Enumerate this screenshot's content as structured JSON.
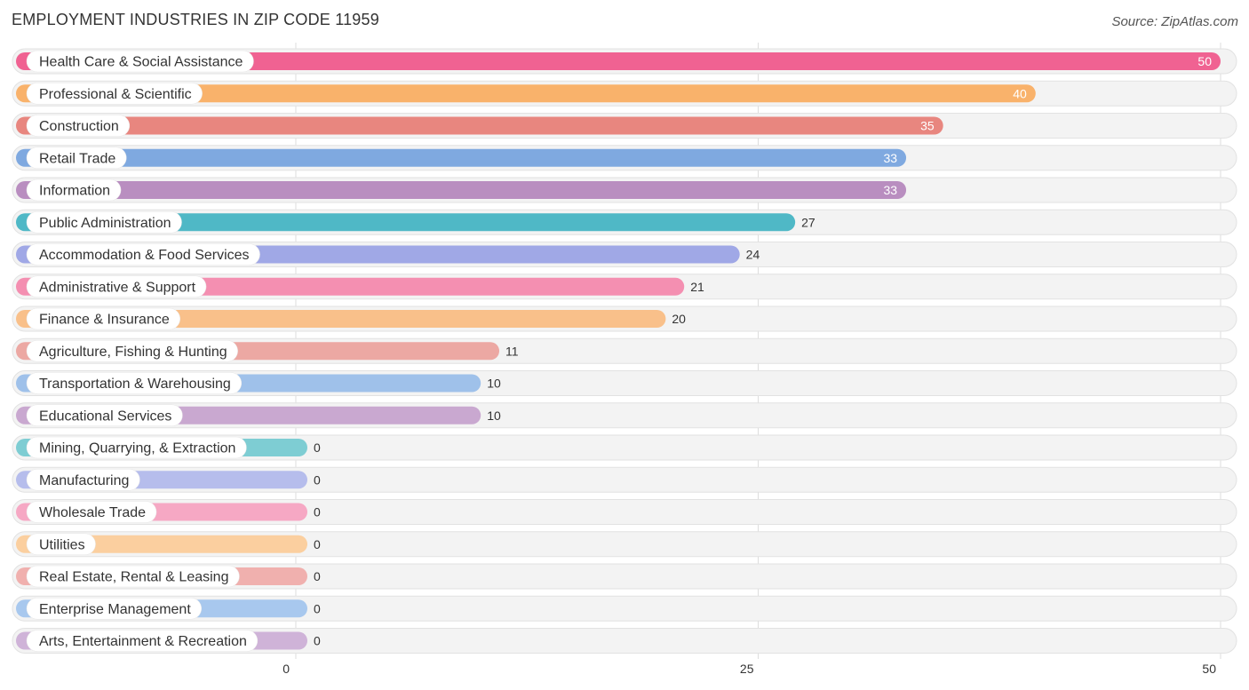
{
  "chart_data": {
    "type": "bar",
    "orientation": "horizontal",
    "title": "EMPLOYMENT INDUSTRIES IN ZIP CODE 11959",
    "source": "Source: ZipAtlas.com",
    "xlim": [
      0,
      50
    ],
    "x_ticks": [
      0,
      25,
      50
    ],
    "grid": true,
    "categories": [
      "Health Care & Social Assistance",
      "Professional & Scientific",
      "Construction",
      "Retail Trade",
      "Information",
      "Public Administration",
      "Accommodation & Food Services",
      "Administrative & Support",
      "Finance & Insurance",
      "Agriculture, Fishing & Hunting",
      "Transportation & Warehousing",
      "Educational Services",
      "Mining, Quarrying, & Extraction",
      "Manufacturing",
      "Wholesale Trade",
      "Utilities",
      "Real Estate, Rental & Leasing",
      "Enterprise Management",
      "Arts, Entertainment & Recreation"
    ],
    "values": [
      50,
      40,
      35,
      33,
      33,
      27,
      24,
      21,
      20,
      11,
      10,
      10,
      0,
      0,
      0,
      0,
      0,
      0,
      0
    ],
    "colors": [
      "#f06292",
      "#f9b26b",
      "#e8867f",
      "#7fa9e0",
      "#b98ec0",
      "#4fb8c6",
      "#a0a8e6",
      "#f48fb1",
      "#f9c08a",
      "#eca8a3",
      "#9fc1ea",
      "#c9a8d0",
      "#7ecdd3",
      "#b6bdec",
      "#f6a8c4",
      "#fbcf9f",
      "#f0b0ae",
      "#a8c8ee",
      "#cfb3d8"
    ]
  }
}
